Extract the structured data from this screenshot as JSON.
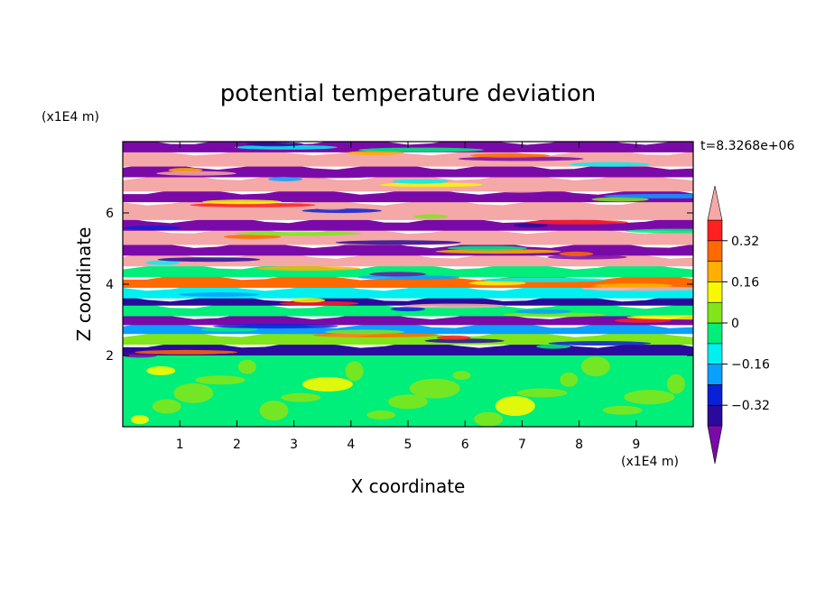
{
  "chart_data": {
    "type": "heatmap",
    "title": "potential temperature deviation",
    "xlabel": "X coordinate",
    "ylabel": "Z coordinate",
    "x_unit": "(x1E4 m)",
    "y_unit": "(x1E4 m)",
    "time_label": "t=8.3268e+06",
    "xlim": [
      0,
      10
    ],
    "ylim": [
      0,
      8
    ],
    "x_ticks": [
      "1",
      "2",
      "3",
      "4",
      "5",
      "6",
      "7",
      "8",
      "9"
    ],
    "y_ticks": [
      "2",
      "4",
      "6"
    ],
    "colorbar": {
      "labels": [
        "0.32",
        "0.16",
        "0",
        "-0.16",
        "-0.32"
      ],
      "levels": [
        -0.4,
        -0.32,
        -0.24,
        -0.16,
        -0.08,
        0,
        0.08,
        0.16,
        0.24,
        0.32,
        0.4
      ],
      "colors": [
        "#7a0aa8",
        "#2a0a9a",
        "#0a20d8",
        "#0aa0ff",
        "#00f0f0",
        "#00ee7a",
        "#80e61a",
        "#f8f800",
        "#ffb000",
        "#ff6a00",
        "#ff2020",
        "#f4a8a8"
      ]
    },
    "bands": [
      {
        "z0": 0.0,
        "z1": 2.0,
        "color": "#00ee7a"
      },
      {
        "z0": 2.0,
        "z1": 2.3,
        "color": "#2a0a9a"
      },
      {
        "z0": 2.3,
        "z1": 2.6,
        "color": "#80e61a"
      },
      {
        "z0": 2.6,
        "z1": 2.85,
        "color": "#0aa0ff"
      },
      {
        "z0": 2.85,
        "z1": 3.1,
        "color": "#7a0aa8"
      },
      {
        "z0": 3.1,
        "z1": 3.4,
        "color": "#00ee7a"
      },
      {
        "z0": 3.4,
        "z1": 3.6,
        "color": "#2a0a9a"
      },
      {
        "z0": 3.6,
        "z1": 3.9,
        "color": "#00f0f0"
      },
      {
        "z0": 3.9,
        "z1": 4.2,
        "color": "#ff6a00"
      },
      {
        "z0": 4.2,
        "z1": 4.5,
        "color": "#00ee7a"
      },
      {
        "z0": 4.5,
        "z1": 4.8,
        "color": "#f4a8a8"
      },
      {
        "z0": 4.8,
        "z1": 5.1,
        "color": "#7a0aa8"
      },
      {
        "z0": 5.1,
        "z1": 5.5,
        "color": "#f4a8a8"
      },
      {
        "z0": 5.5,
        "z1": 5.8,
        "color": "#7a0aa8"
      },
      {
        "z0": 5.8,
        "z1": 6.3,
        "color": "#f4a8a8"
      },
      {
        "z0": 6.3,
        "z1": 6.6,
        "color": "#7a0aa8"
      },
      {
        "z0": 6.6,
        "z1": 7.0,
        "color": "#f4a8a8"
      },
      {
        "z0": 7.0,
        "z1": 7.3,
        "color": "#7a0aa8"
      },
      {
        "z0": 7.3,
        "z1": 7.7,
        "color": "#f4a8a8"
      },
      {
        "z0": 7.7,
        "z1": 8.0,
        "color": "#7a0aa8"
      }
    ]
  }
}
